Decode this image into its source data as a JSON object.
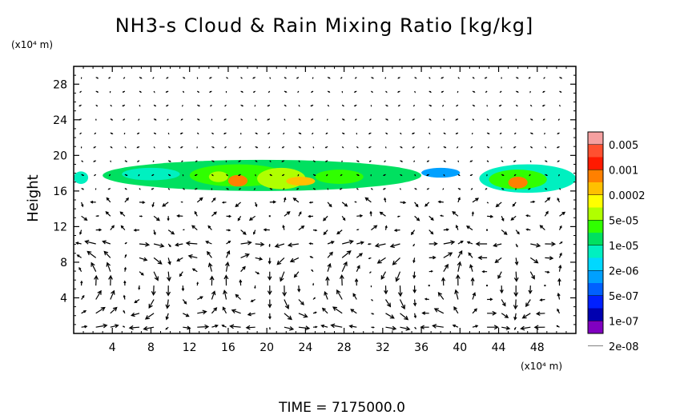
{
  "chart_data": {
    "type": "heatmap",
    "title": "NH3-s Cloud & Rain Mixing Ratio [kg/kg]",
    "ylabel": "Height",
    "y_unit": "(x10⁴ m)",
    "x_unit": "(x10⁴ m)",
    "xlim": [
      0,
      52
    ],
    "ylim": [
      0,
      30
    ],
    "x_ticks": [
      4,
      8,
      12,
      16,
      20,
      24,
      28,
      32,
      36,
      40,
      44,
      48
    ],
    "y_ticks": [
      4,
      8,
      12,
      16,
      20,
      24,
      28
    ],
    "time_label": "TIME = 7175000.0",
    "colorbar": {
      "labels": [
        "0.005",
        "0.001",
        "0.0002",
        "5e-05",
        "1e-05",
        "2e-06",
        "5e-07",
        "1e-07",
        "2e-08"
      ],
      "colors": [
        "#f5a0a0",
        "#ff5030",
        "#ff1a00",
        "#ff8000",
        "#ffc000",
        "#ffff00",
        "#b0ff00",
        "#30ff00",
        "#00e060",
        "#00f0c0",
        "#00d8ff",
        "#00a0ff",
        "#0060ff",
        "#0020ff",
        "#0000b0",
        "#8000c0"
      ]
    },
    "cloud_cells": [
      {
        "x": [
          0,
          1.5
        ],
        "y": [
          16.8,
          18.2
        ],
        "level": 9
      },
      {
        "x": [
          3,
          36
        ],
        "y": [
          16.0,
          19.5
        ],
        "level": 8
      },
      {
        "x": [
          5,
          11
        ],
        "y": [
          17.2,
          18.6
        ],
        "level": 9
      },
      {
        "x": [
          12,
          22
        ],
        "y": [
          16.5,
          19.0
        ],
        "level": 7
      },
      {
        "x": [
          14,
          16
        ],
        "y": [
          17.0,
          18.2
        ],
        "level": 6
      },
      {
        "x": [
          16,
          18
        ],
        "y": [
          16.5,
          17.8
        ],
        "level": 3
      },
      {
        "x": [
          19,
          24
        ],
        "y": [
          16.2,
          18.6
        ],
        "level": 6
      },
      {
        "x": [
          22,
          25
        ],
        "y": [
          16.6,
          17.6
        ],
        "level": 4
      },
      {
        "x": [
          25,
          30
        ],
        "y": [
          16.8,
          18.4
        ],
        "level": 7
      },
      {
        "x": [
          36,
          40
        ],
        "y": [
          17.5,
          18.6
        ],
        "level": 11
      },
      {
        "x": [
          42,
          52
        ],
        "y": [
          15.8,
          19.0
        ],
        "level": 9
      },
      {
        "x": [
          43,
          49
        ],
        "y": [
          16.2,
          18.4
        ],
        "level": 7
      },
      {
        "x": [
          45,
          47
        ],
        "y": [
          16.3,
          17.6
        ],
        "level": 3
      }
    ]
  }
}
